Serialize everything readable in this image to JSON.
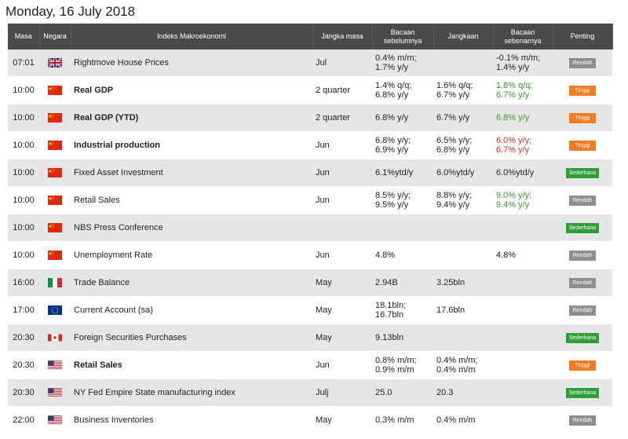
{
  "date_label": "Monday, 16 July 2018",
  "headers": {
    "time": "Masa",
    "country": "Negara",
    "indicator": "Indeks Makroekonomi",
    "period": "Jangka masa",
    "previous": "Bacaan sebelumnya",
    "forecast": "Jangkaan",
    "actual": "Bacaan sebenarnya",
    "importance": "Penting"
  },
  "rows": [
    {
      "time": "07:01",
      "country": "uk",
      "name": "Rightmove House Prices",
      "bold": false,
      "period": "Jul",
      "previous": [
        "0.4% m/m;",
        "1.7% y/y"
      ],
      "forecast": [],
      "actual": [
        "-0.1% m/m;",
        "1.4% y/y"
      ],
      "actual_color": "",
      "importance": "Rendah",
      "imp_class": "rendah"
    },
    {
      "time": "10:00",
      "country": "cn",
      "name": "Real GDP",
      "bold": true,
      "period": "2 quarter",
      "previous": [
        "1.4% q/q;",
        "6.8% y/y"
      ],
      "forecast": [
        "1.6% q/q;",
        "6.7% y/y"
      ],
      "actual": [
        "1.8% q/q;",
        "6.7% y/y"
      ],
      "actual_color": "green",
      "importance": "Tinggi",
      "imp_class": "tinggi"
    },
    {
      "time": "10:00",
      "country": "cn",
      "name": "Real GDP (YTD)",
      "bold": true,
      "period": "2 quarter",
      "previous": [
        "6.8% y/y"
      ],
      "forecast": [
        "6.7% y/y"
      ],
      "actual": [
        "6.8% y/y"
      ],
      "actual_color": "green",
      "importance": "Tinggi",
      "imp_class": "tinggi"
    },
    {
      "time": "10:00",
      "country": "cn",
      "name": "Industrial production",
      "bold": true,
      "period": "Jun",
      "previous": [
        "6.8% y/y;",
        "6.9% y/y"
      ],
      "forecast": [
        "6.5% y/y;",
        "6.8% y/y"
      ],
      "actual": [
        "6.0% y/y;",
        "6.7% y/y"
      ],
      "actual_color": "red",
      "importance": "Tinggi",
      "imp_class": "tinggi"
    },
    {
      "time": "10:00",
      "country": "cn",
      "name": "Fixed Asset Investment",
      "bold": false,
      "period": "Jun",
      "previous": [
        "6.1%ytd/y"
      ],
      "forecast": [
        "6.0%ytd/y"
      ],
      "actual": [
        "6.0%ytd/y"
      ],
      "actual_color": "",
      "importance": "Sederhana",
      "imp_class": "sederhana"
    },
    {
      "time": "10:00",
      "country": "cn",
      "name": "Retail Sales",
      "bold": false,
      "period": "Jun",
      "previous": [
        "8.5% y/y;",
        "9.5% y/y"
      ],
      "forecast": [
        "8.8% y/y;",
        "9.4% y/y"
      ],
      "actual": [
        "9.0% y/y;",
        "9.4% y/y"
      ],
      "actual_color": "green",
      "importance": "Rendah",
      "imp_class": "rendah"
    },
    {
      "time": "10:00",
      "country": "cn",
      "name": "NBS Press Conference",
      "bold": false,
      "period": "",
      "previous": [],
      "forecast": [],
      "actual": [],
      "actual_color": "",
      "importance": "Sederhana",
      "imp_class": "sederhana"
    },
    {
      "time": "10:00",
      "country": "cn",
      "name": "Unemployment Rate",
      "bold": false,
      "period": "Jun",
      "previous": [
        "4.8%"
      ],
      "forecast": [],
      "actual": [
        "4.8%"
      ],
      "actual_color": "",
      "importance": "Rendah",
      "imp_class": "rendah"
    },
    {
      "time": "16:00",
      "country": "it",
      "name": "Trade Balance",
      "bold": false,
      "period": "May",
      "previous": [
        "2.94B"
      ],
      "forecast": [
        "3.25bln"
      ],
      "actual": [],
      "actual_color": "",
      "importance": "Rendah",
      "imp_class": "rendah"
    },
    {
      "time": "17:00",
      "country": "eu",
      "name": "Current Account (sa)",
      "bold": false,
      "period": "May",
      "previous": [
        "18.1bln;",
        "16.7bln"
      ],
      "forecast": [
        "17.6bln"
      ],
      "actual": [],
      "actual_color": "",
      "importance": "Rendah",
      "imp_class": "rendah"
    },
    {
      "time": "20:30",
      "country": "ca",
      "name": "Foreign Securities Purchases",
      "bold": false,
      "period": "May",
      "previous": [
        "9.13bln"
      ],
      "forecast": [],
      "actual": [],
      "actual_color": "",
      "importance": "Sederhana",
      "imp_class": "sederhana"
    },
    {
      "time": "20:30",
      "country": "us",
      "name": "Retail Sales",
      "bold": true,
      "period": "Jun",
      "previous": [
        "0.8% m/m;",
        "0.9% m/m"
      ],
      "forecast": [
        "0.4% m/m;",
        "0.4% m/m"
      ],
      "actual": [],
      "actual_color": "",
      "importance": "Tinggi",
      "imp_class": "tinggi"
    },
    {
      "time": "20:30",
      "country": "us",
      "name": "NY Fed Empire State manufacturing index",
      "bold": false,
      "period": "Julj",
      "previous": [
        "25.0"
      ],
      "forecast": [
        "20.3"
      ],
      "actual": [],
      "actual_color": "",
      "importance": "Sederhana",
      "imp_class": "sederhana"
    },
    {
      "time": "22:00",
      "country": "us",
      "name": "Business Inventories",
      "bold": false,
      "period": "May",
      "previous": [
        "0.3% m/m"
      ],
      "forecast": [
        "0.4% m/m"
      ],
      "actual": [],
      "actual_color": "",
      "importance": "Rendah",
      "imp_class": "rendah"
    }
  ]
}
